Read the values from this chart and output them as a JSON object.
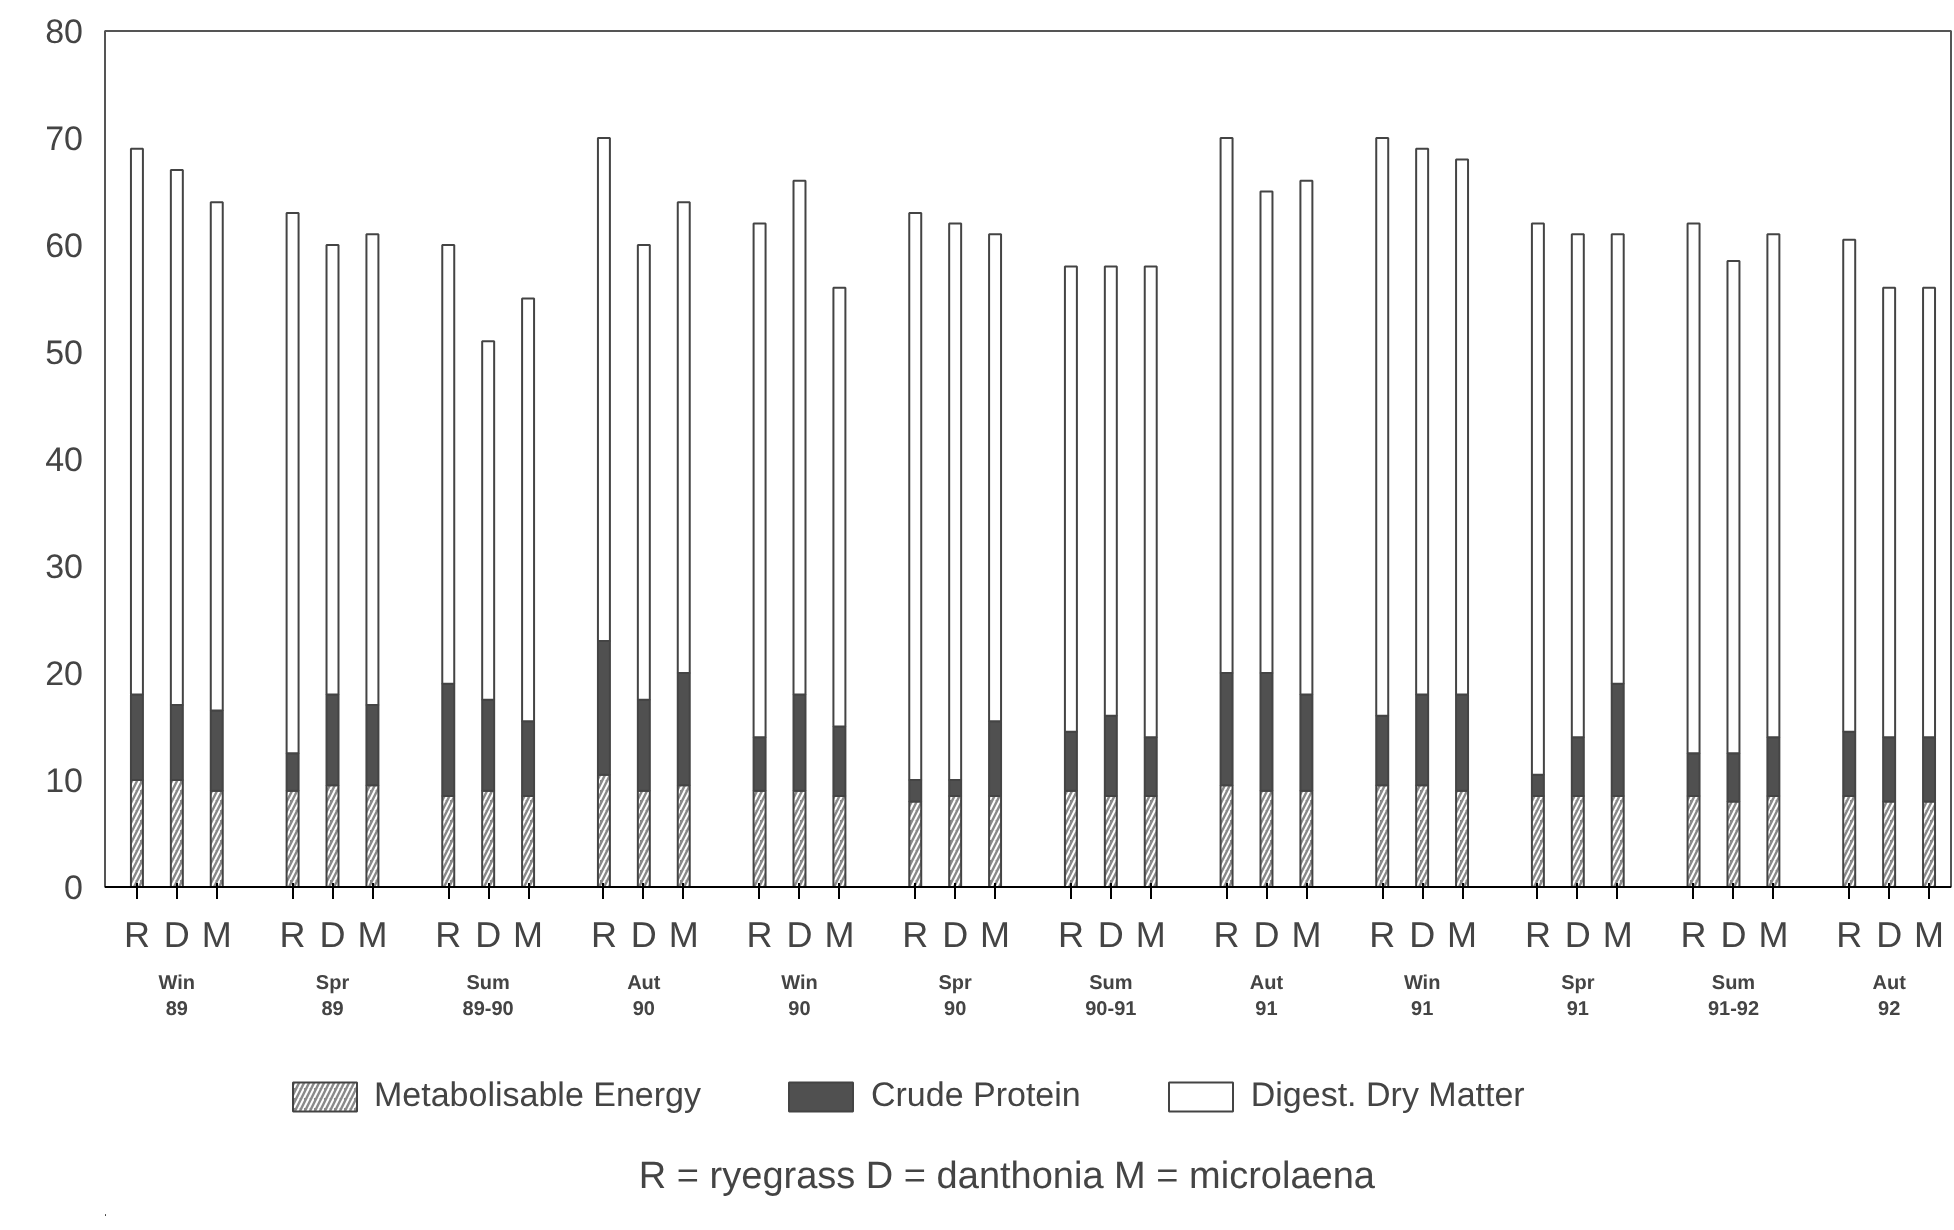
{
  "chart_data": {
    "type": "bar",
    "stacked": true,
    "categories": [
      "R",
      "D",
      "M",
      "R",
      "D",
      "M",
      "R",
      "D",
      "M",
      "R",
      "D",
      "M",
      "R",
      "D",
      "M",
      "R",
      "D",
      "M",
      "R",
      "D",
      "M",
      "R",
      "D",
      "M",
      "R",
      "D",
      "M",
      "R",
      "D",
      "M",
      "R",
      "D",
      "M",
      "R",
      "D",
      "M"
    ],
    "series": [
      {
        "name": "Metabolisable Energy",
        "color": "#8a8a8a",
        "values": [
          10,
          10,
          9,
          9,
          9.5,
          9.5,
          8.5,
          9,
          8.5,
          10.5,
          9,
          9.5,
          9,
          9,
          8.5,
          8,
          8.5,
          8.5,
          9,
          8.5,
          8.5,
          9.5,
          9,
          9,
          9.5,
          9.5,
          9,
          8.5,
          8.5,
          8.5,
          8.5,
          8,
          8.5,
          8.5,
          8,
          8
        ]
      },
      {
        "name": "Crude Protein",
        "color": "#505050",
        "values": [
          8,
          7,
          7.5,
          3.5,
          8.5,
          7.5,
          10.5,
          8.5,
          7,
          12.5,
          8.5,
          10.5,
          5,
          9,
          6.5,
          2,
          1.5,
          7,
          5.5,
          7.5,
          5.5,
          10.5,
          11,
          9,
          6.5,
          8.5,
          9,
          2,
          5.5,
          10.5,
          4,
          4.5,
          5.5,
          6,
          6,
          6
        ]
      },
      {
        "name": "Digest. Dry Matter",
        "color": "#ffffff",
        "values": [
          51,
          50,
          47.5,
          50.5,
          42,
          44,
          41,
          33.5,
          39.5,
          47,
          42.5,
          44,
          48,
          48,
          41,
          53,
          52,
          45.5,
          43.5,
          42,
          44,
          50,
          45,
          48,
          54,
          51,
          50,
          51.5,
          47,
          42,
          49.5,
          46,
          47,
          46,
          42,
          42
        ]
      }
    ],
    "ylim": [
      0,
      80
    ],
    "yticks": [
      0,
      10,
      20,
      30,
      40,
      50,
      60,
      70,
      80
    ],
    "legend": "bottom",
    "annotations": [
      "Win\n89",
      "Spr\n89",
      "Sum\n89-90",
      "Aut\n90",
      "Win\n90",
      "Spr\n90",
      "Sum\n90-91",
      "Aut\n91",
      "Win\n91",
      "Spr\n91",
      "Sum\n91-92",
      "Aut\n92",
      "R = ryegrass   D = danthonia   M = microlaena"
    ]
  }
}
